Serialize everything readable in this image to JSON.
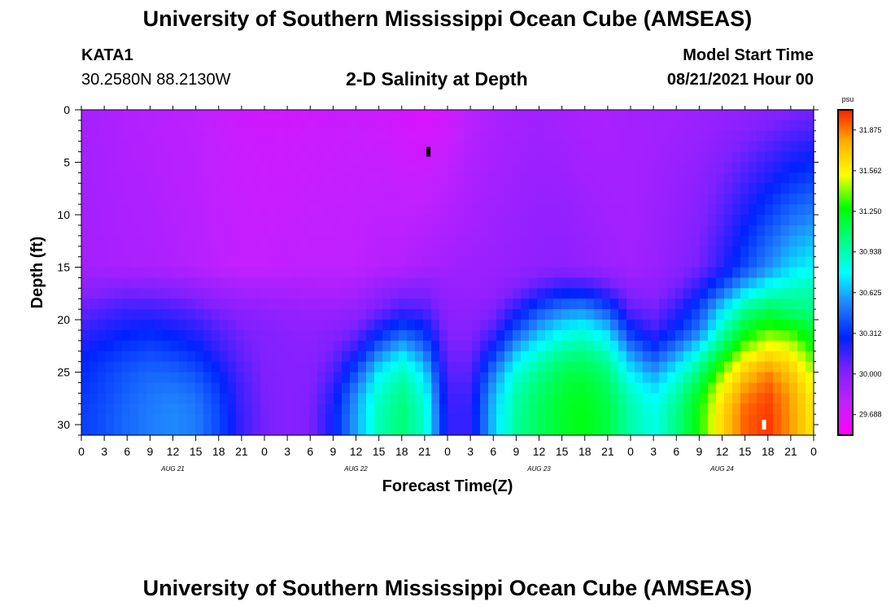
{
  "header": {
    "title": "University of Southern Mississippi Ocean Cube (AMSEAS)",
    "station": "KATA1",
    "coords": "30.2580N  88.2130W",
    "subtitle": "2-D Salinity at Depth",
    "model_label": "Model Start Time",
    "model_date": "08/21/2021 Hour 00"
  },
  "footer": {
    "title": "University of Southern Mississippi Ocean Cube (AMSEAS)"
  },
  "chart_data": {
    "type": "heatmap",
    "title": "2-D Salinity at Depth",
    "xlabel": "Forecast Time(Z)",
    "ylabel": "Depth (ft)",
    "x_tick_labels": [
      "0",
      "3",
      "6",
      "9",
      "12",
      "15",
      "18",
      "21",
      "0",
      "3",
      "6",
      "9",
      "12",
      "15",
      "18",
      "21",
      "0",
      "3",
      "6",
      "9",
      "12",
      "15",
      "18",
      "21",
      "0",
      "3",
      "6",
      "9",
      "12",
      "15",
      "18",
      "21",
      "0"
    ],
    "day_labels": [
      "AUG 21",
      "AUG 22",
      "AUG 23",
      "AUG 24"
    ],
    "xlim_hours": [
      0,
      96
    ],
    "ylim_ft": [
      0,
      31
    ],
    "y_ticks": [
      0,
      5,
      10,
      15,
      20,
      25,
      30
    ],
    "y_inverted": true,
    "colorbar": {
      "unit": "psu",
      "min": 29.53,
      "max": 32.03,
      "tick_values": [
        29.688,
        30.0,
        30.312,
        30.625,
        30.938,
        31.25,
        31.562,
        31.875
      ],
      "tick_labels": [
        "29.688",
        "30.000",
        "30.312",
        "30.625",
        "30.938",
        "31.250",
        "31.562",
        "31.875"
      ],
      "colors": [
        "#ff00ff",
        "#c020ff",
        "#7f20ff",
        "#0022ff",
        "#2080ff",
        "#00ffff",
        "#00ff80",
        "#00ff00",
        "#ffff00",
        "#ffb000",
        "#ff2000"
      ]
    },
    "markers": [
      {
        "name": "minimum",
        "x_hour": 45.5,
        "y_ft": 4.0,
        "color": "#000000"
      },
      {
        "name": "maximum",
        "x_hour": 89.5,
        "y_ft": 30.0,
        "color": "#ffffff"
      }
    ],
    "depth_values_ft": [
      0,
      15,
      17,
      19,
      21,
      23,
      25,
      27,
      29,
      31
    ],
    "time_values_hr": [
      0,
      3,
      6,
      9,
      12,
      15,
      18,
      21,
      24,
      27,
      30,
      33,
      36,
      39,
      42,
      45,
      48,
      51,
      54,
      57,
      60,
      63,
      66,
      69,
      72,
      75,
      78,
      81,
      84,
      87,
      90,
      93,
      96
    ],
    "salinity_grid_psu": [
      [
        29.88,
        29.86,
        29.83,
        29.82,
        29.8,
        29.79,
        29.76,
        29.73,
        29.72,
        29.72,
        29.73,
        29.74,
        29.75,
        29.73,
        29.7,
        29.67,
        29.71,
        29.8,
        29.85,
        29.88,
        29.9,
        29.88,
        29.86,
        29.86,
        29.88,
        29.89,
        29.9,
        29.91,
        29.93,
        29.95,
        29.98,
        30.02,
        30.04
      ],
      [
        29.9,
        29.88,
        29.87,
        29.86,
        29.84,
        29.82,
        29.79,
        29.77,
        29.77,
        29.78,
        29.79,
        29.79,
        29.79,
        29.82,
        29.83,
        29.87,
        29.9,
        29.92,
        29.93,
        29.95,
        29.97,
        29.98,
        29.95,
        29.92,
        29.9,
        29.93,
        29.98,
        30.05,
        30.2,
        30.38,
        30.55,
        30.7,
        30.78
      ],
      [
        29.97,
        30.0,
        30.02,
        30.01,
        30.0,
        29.95,
        29.9,
        29.88,
        29.87,
        29.86,
        29.86,
        29.85,
        29.87,
        29.94,
        30.0,
        30.01,
        29.94,
        29.93,
        29.95,
        30.02,
        30.12,
        30.2,
        30.2,
        30.1,
        29.98,
        29.97,
        30.05,
        30.2,
        30.42,
        30.66,
        30.82,
        30.9,
        30.94
      ],
      [
        30.08,
        30.12,
        30.16,
        30.16,
        30.14,
        30.1,
        30.03,
        29.98,
        29.96,
        29.94,
        29.93,
        29.93,
        29.95,
        30.05,
        30.14,
        30.12,
        29.98,
        29.97,
        30.02,
        30.2,
        30.4,
        30.52,
        30.55,
        30.4,
        30.1,
        30.05,
        30.18,
        30.38,
        30.72,
        31.0,
        31.12,
        31.05,
        31.0
      ],
      [
        30.17,
        30.22,
        30.26,
        30.28,
        30.25,
        30.2,
        30.12,
        30.05,
        30.0,
        29.98,
        29.97,
        29.99,
        30.05,
        30.24,
        30.4,
        30.3,
        30.0,
        30.0,
        30.12,
        30.4,
        30.62,
        30.76,
        30.82,
        30.68,
        30.3,
        30.15,
        30.3,
        30.5,
        30.9,
        31.2,
        31.35,
        31.3,
        31.16
      ],
      [
        30.25,
        30.3,
        30.35,
        30.38,
        30.35,
        30.3,
        30.18,
        30.08,
        30.02,
        30.0,
        29.99,
        30.05,
        30.2,
        30.5,
        30.7,
        30.5,
        30.05,
        30.05,
        30.3,
        30.65,
        30.85,
        30.98,
        31.02,
        30.9,
        30.55,
        30.35,
        30.55,
        30.8,
        31.15,
        31.45,
        31.6,
        31.55,
        31.3
      ],
      [
        30.3,
        30.36,
        30.42,
        30.46,
        30.45,
        30.4,
        30.28,
        30.12,
        30.03,
        30.0,
        30.0,
        30.12,
        30.4,
        30.75,
        30.92,
        30.7,
        30.1,
        30.1,
        30.5,
        30.85,
        31.0,
        31.12,
        31.15,
        31.05,
        30.75,
        30.58,
        30.78,
        31.05,
        31.4,
        31.7,
        31.85,
        31.7,
        31.45
      ],
      [
        30.33,
        30.38,
        30.45,
        30.5,
        30.52,
        30.48,
        30.35,
        30.15,
        30.04,
        30.0,
        30.02,
        30.2,
        30.55,
        30.88,
        31.02,
        30.82,
        30.15,
        30.15,
        30.62,
        30.95,
        31.08,
        31.18,
        31.22,
        31.12,
        30.9,
        30.75,
        30.95,
        31.22,
        31.58,
        31.85,
        31.95,
        31.8,
        31.55
      ],
      [
        30.35,
        30.4,
        30.47,
        30.52,
        30.55,
        30.52,
        30.38,
        30.17,
        30.05,
        30.0,
        30.03,
        30.25,
        30.6,
        30.92,
        31.05,
        30.88,
        30.18,
        30.18,
        30.66,
        30.98,
        31.1,
        31.2,
        31.24,
        31.15,
        30.95,
        30.82,
        31.02,
        31.28,
        31.65,
        31.92,
        31.99,
        31.82,
        31.58
      ],
      [
        30.35,
        30.4,
        30.47,
        30.52,
        30.55,
        30.52,
        30.38,
        30.17,
        30.05,
        30.0,
        30.03,
        30.25,
        30.6,
        30.92,
        31.05,
        30.88,
        30.18,
        30.18,
        30.66,
        30.98,
        31.1,
        31.2,
        31.24,
        31.15,
        30.95,
        30.82,
        31.02,
        31.28,
        31.65,
        31.92,
        31.99,
        31.82,
        31.58
      ]
    ]
  }
}
